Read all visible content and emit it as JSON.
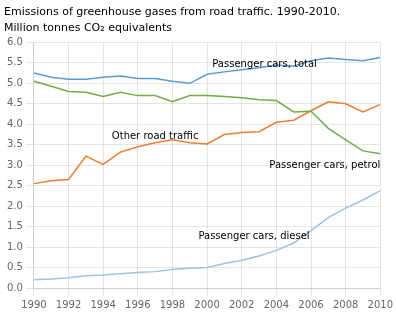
{
  "chart_data": {
    "type": "line",
    "title": "Emissions of greenhouse gases from road traffic. 1990-2010.",
    "subtitle": "Million tonnes CO₂ equivalents",
    "x": [
      1990,
      1991,
      1992,
      1993,
      1994,
      1995,
      1996,
      1997,
      1998,
      1999,
      2000,
      2001,
      2002,
      2003,
      2004,
      2005,
      2006,
      2007,
      2008,
      2009,
      2010
    ],
    "series": [
      {
        "color": "#5B9BD5",
        "values": [
          5.25,
          5.15,
          5.1,
          5.1,
          5.15,
          5.18,
          5.12,
          5.12,
          5.05,
          5.0,
          5.22,
          5.28,
          5.33,
          5.38,
          5.45,
          5.42,
          5.55,
          5.62,
          5.58,
          5.55,
          5.63
        ]
      },
      {
        "color": "#70AD47",
        "values": [
          5.05,
          4.93,
          4.8,
          4.78,
          4.68,
          4.78,
          4.7,
          4.7,
          4.55,
          4.7,
          4.7,
          4.68,
          4.65,
          4.6,
          4.58,
          4.3,
          4.32,
          3.9,
          3.62,
          3.35,
          3.28
        ]
      },
      {
        "color": "#ED7D31",
        "values": [
          2.55,
          2.62,
          2.65,
          3.22,
          3.02,
          3.32,
          3.45,
          3.55,
          3.62,
          3.55,
          3.52,
          3.75,
          3.8,
          3.82,
          4.05,
          4.1,
          4.33,
          4.55,
          4.5,
          4.3,
          4.48
        ]
      },
      {
        "color": "#9DC3E6",
        "values": [
          0.2,
          0.22,
          0.25,
          0.3,
          0.32,
          0.35,
          0.38,
          0.4,
          0.45,
          0.48,
          0.5,
          0.6,
          0.68,
          0.78,
          0.92,
          1.1,
          1.4,
          1.72,
          1.95,
          2.15,
          2.38
        ]
      }
    ],
    "annotations": [
      {
        "text": "Passenger cars, total",
        "x": 2000.3,
        "y": 5.35
      },
      {
        "text": "Other road traffic",
        "x": 1994.5,
        "y": 3.58
      },
      {
        "text": "Passenger cars, petrol",
        "x": 2007.2,
        "y": 3.12
      },
      {
        "text": "Passenger cars, diesel",
        "x": 1999.5,
        "y": 1.15
      }
    ],
    "xlim": [
      1990,
      2010
    ],
    "xticks": [
      1990,
      1992,
      1994,
      1996,
      1998,
      2000,
      2002,
      2004,
      2006,
      2008,
      2010
    ],
    "ylim": [
      0.0,
      6.0
    ],
    "yticks": [
      {
        "value": 0,
        "label": "0.0"
      },
      0.5,
      {
        "value": 1,
        "label": "1.0"
      },
      1.5,
      {
        "value": 2,
        "label": "2.0"
      },
      2.5,
      {
        "value": 3,
        "label": "3.0"
      },
      3.5,
      {
        "value": 4,
        "label": "4.0"
      },
      4.5,
      {
        "value": 5,
        "label": "5.0"
      },
      5.5,
      {
        "value": 6,
        "label": "6.0"
      }
    ],
    "grid": true
  }
}
